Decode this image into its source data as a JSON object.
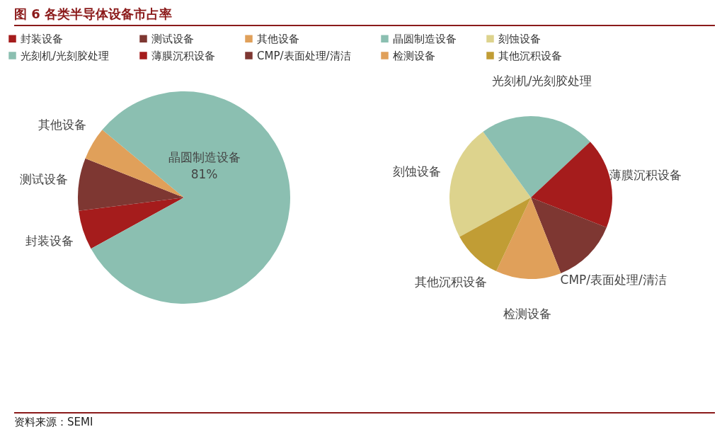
{
  "chart_data": [
    {
      "type": "pie",
      "title": "图 6 各类半导体设备市占率",
      "categories": [
        "封装设备",
        "测试设备",
        "其他设备",
        "晶圆制造设备"
      ],
      "values": [
        6,
        8,
        5,
        81
      ],
      "colors": [
        "#a51c1c",
        "#7e3732",
        "#e0a05a",
        "#8bbfb1"
      ],
      "value_labels": [
        null,
        null,
        null,
        "81%"
      ],
      "legend": "top",
      "annotations": [
        "资料来源：SEMI"
      ]
    },
    {
      "type": "pie",
      "categories": [
        "刻蚀设备",
        "光刻机/光刻胶处理",
        "薄膜沉积设备",
        "CMP/表面处理/清洁",
        "检测设备",
        "其他沉积设备"
      ],
      "values": [
        23,
        23,
        18,
        13,
        13,
        10
      ],
      "colors": [
        "#ddd38d",
        "#8bbfb1",
        "#a51c1c",
        "#7e3732",
        "#e0a05a",
        "#c19d35"
      ],
      "legend": "top"
    }
  ]
}
